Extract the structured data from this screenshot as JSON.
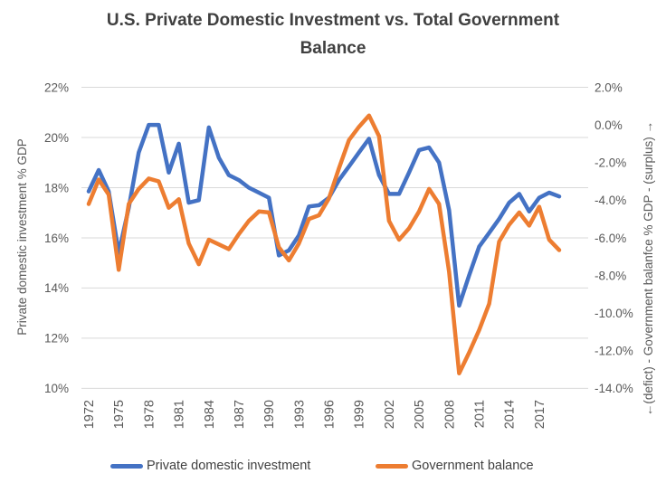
{
  "title": {
    "line1": "U.S. Private Domestic Investment vs. Total Government",
    "line2": "Balance"
  },
  "colors": {
    "investment_line": "#4472C4",
    "government_line": "#ED7D31",
    "gridline": "#D9D9D9",
    "axis_text": "#595959",
    "title_text": "#404040"
  },
  "chart_data": {
    "type": "line",
    "title": "U.S. Private Domestic Investment vs. Total Government Balance",
    "grid": true,
    "legend_position": "bottom",
    "x": [
      1972,
      1973,
      1974,
      1975,
      1976,
      1977,
      1978,
      1979,
      1980,
      1981,
      1982,
      1983,
      1984,
      1985,
      1986,
      1987,
      1988,
      1989,
      1990,
      1991,
      1992,
      1993,
      1994,
      1995,
      1996,
      1997,
      1998,
      1999,
      2000,
      2001,
      2002,
      2003,
      2004,
      2005,
      2006,
      2007,
      2008,
      2009,
      2010,
      2011,
      2012,
      2013,
      2014,
      2015,
      2016,
      2017,
      2018,
      2019
    ],
    "x_tick_labels": [
      "1972",
      "1975",
      "1978",
      "1981",
      "1984",
      "1987",
      "1990",
      "1993",
      "1996",
      "1999",
      "2002",
      "2005",
      "2008",
      "2011",
      "2014",
      "2017"
    ],
    "left_axis": {
      "title": "Private domestic investment % GDP",
      "min": 10,
      "max": 22,
      "ticks": [
        "22%",
        "20%",
        "18%",
        "16%",
        "14%",
        "12%",
        "10%"
      ]
    },
    "right_axis": {
      "title": "←(defict) - Government balanfce % GDP - (surplus) →",
      "min": -14,
      "max": 2,
      "ticks": [
        "2.0%",
        "0.0%",
        "-2.0%",
        "-4.0%",
        "-6.0%",
        "-8.0%",
        "-10.0%",
        "-12.0%",
        "-14.0%"
      ]
    },
    "series": [
      {
        "name": "Private domestic investment",
        "axis": "left",
        "color": "#4472C4",
        "values": [
          17.85,
          18.7,
          17.85,
          15.4,
          17.2,
          19.4,
          20.5,
          20.5,
          18.6,
          19.75,
          17.4,
          17.5,
          20.4,
          19.2,
          18.5,
          18.3,
          18.0,
          17.8,
          17.6,
          15.3,
          15.5,
          16.1,
          17.25,
          17.3,
          17.6,
          18.3,
          18.85,
          19.4,
          19.95,
          18.5,
          17.75,
          17.75,
          18.6,
          19.5,
          19.6,
          19.0,
          17.1,
          13.3,
          14.5,
          15.65,
          16.2,
          16.75,
          17.4,
          17.75,
          17.05,
          17.6,
          17.8,
          17.65
        ]
      },
      {
        "name": "Government balance",
        "axis": "right",
        "color": "#ED7D31",
        "values": [
          -4.2,
          -2.9,
          -3.7,
          -7.7,
          -4.2,
          -3.4,
          -2.85,
          -3.0,
          -4.4,
          -3.95,
          -6.3,
          -7.4,
          -6.1,
          -6.35,
          -6.6,
          -5.8,
          -5.1,
          -4.6,
          -4.65,
          -6.5,
          -7.2,
          -6.3,
          -5.0,
          -4.8,
          -3.9,
          -2.3,
          -0.8,
          -0.1,
          0.5,
          -0.6,
          -5.1,
          -6.1,
          -5.5,
          -4.6,
          -3.4,
          -4.2,
          -7.8,
          -13.2,
          -12.1,
          -10.9,
          -9.5,
          -6.2,
          -5.3,
          -4.65,
          -5.35,
          -4.35,
          -6.1,
          -6.65
        ]
      }
    ]
  }
}
